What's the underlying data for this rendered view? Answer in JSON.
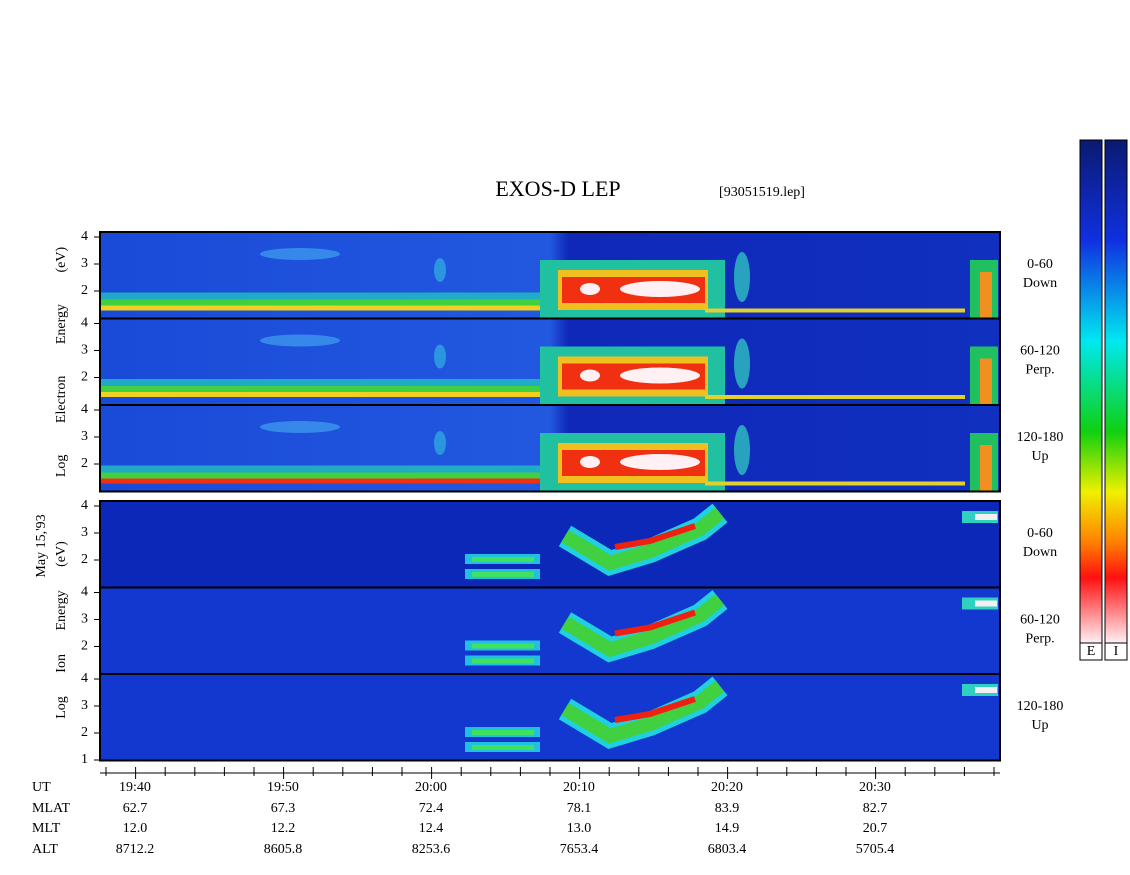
{
  "header": {
    "title": "EXOS-D LEP",
    "file": "[93051519.lep]"
  },
  "date": "May 15,'93",
  "axis_labels": {
    "electron": "Log Electron Energy (eV)",
    "ion": "Log Ion Energy (eV)"
  },
  "panels": [
    {
      "species": "electron",
      "yticks": [
        2,
        3,
        4
      ],
      "pitch": "0-60",
      "direction": "Down"
    },
    {
      "species": "electron",
      "yticks": [
        2,
        3,
        4
      ],
      "pitch": "60-120",
      "direction": "Perp."
    },
    {
      "species": "electron",
      "yticks": [
        2,
        3,
        4
      ],
      "pitch": "120-180",
      "direction": "Up"
    },
    {
      "species": "ion",
      "yticks": [
        2,
        3,
        4
      ],
      "pitch": "0-60",
      "direction": "Down"
    },
    {
      "species": "ion",
      "yticks": [
        2,
        3,
        4
      ],
      "pitch": "60-120",
      "direction": "Perp."
    },
    {
      "species": "ion",
      "yticks": [
        1,
        2,
        3,
        4
      ],
      "pitch": "120-180",
      "direction": "Up"
    }
  ],
  "ephemeris": {
    "labels": [
      "UT",
      "MLAT",
      "MLT",
      "ALT"
    ],
    "UT": [
      "19:40",
      "19:50",
      "20:00",
      "20:10",
      "20:20",
      "20:30"
    ],
    "MLAT": [
      "62.7",
      "67.3",
      "72.4",
      "78.1",
      "83.9",
      "82.7"
    ],
    "MLT": [
      "12.0",
      "12.2",
      "12.4",
      "13.0",
      "14.9",
      "20.7"
    ],
    "ALT": [
      "8712.2",
      "8605.8",
      "8253.6",
      "7653.4",
      "6803.4",
      "5705.4"
    ]
  },
  "colorbar": {
    "labels": [
      "E",
      "I"
    ]
  }
}
